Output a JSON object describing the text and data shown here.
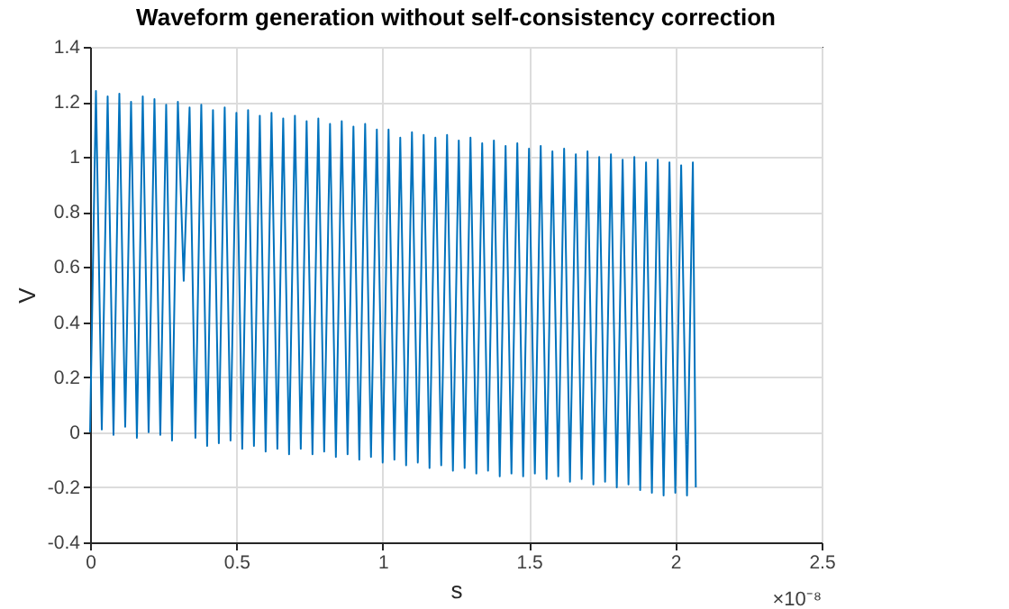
{
  "chart_data": {
    "type": "line",
    "title": "Waveform generation without self-consistency correction",
    "xlabel": "s",
    "ylabel": "V",
    "annotations": [
      "×10⁻⁸"
    ],
    "x": [
      0,
      0.02,
      0.04,
      0.06,
      0.08,
      0.1,
      0.12,
      0.14,
      0.16,
      0.18,
      0.2,
      0.22,
      0.24,
      0.26,
      0.28,
      0.3,
      0.32,
      0.34,
      0.36,
      0.38,
      0.4,
      0.42,
      0.44,
      0.46,
      0.48,
      0.5,
      0.52,
      0.54,
      0.56,
      0.58,
      0.6,
      0.62,
      0.64,
      0.66,
      0.68,
      0.7,
      0.72,
      0.74,
      0.76,
      0.78,
      0.8,
      0.82,
      0.84,
      0.86,
      0.88,
      0.9,
      0.92,
      0.94,
      0.96,
      0.98,
      1.0,
      1.02,
      1.04,
      1.06,
      1.08,
      1.1,
      1.12,
      1.14,
      1.16,
      1.18,
      1.2,
      1.22,
      1.24,
      1.26,
      1.28,
      1.3,
      1.32,
      1.34,
      1.36,
      1.38,
      1.4,
      1.42,
      1.44,
      1.46,
      1.48,
      1.5,
      1.52,
      1.54,
      1.56,
      1.58,
      1.6,
      1.62,
      1.64,
      1.66,
      1.68,
      1.7,
      1.72,
      1.74,
      1.76,
      1.78,
      1.8,
      1.82,
      1.84,
      1.86,
      1.88,
      1.9,
      1.92,
      1.94,
      1.96,
      1.98,
      2.0,
      2.02,
      2.04,
      2.06,
      2.07
    ],
    "series": [
      {
        "color": "#0072bd",
        "values": [
          0,
          1.24,
          0.01,
          1.22,
          -0.01,
          1.23,
          0.02,
          1.2,
          -0.02,
          1.22,
          0.0,
          1.21,
          -0.01,
          1.19,
          -0.03,
          1.2,
          0.55,
          1.18,
          -0.02,
          1.19,
          -0.05,
          1.17,
          -0.04,
          1.18,
          -0.03,
          1.16,
          -0.06,
          1.17,
          -0.05,
          1.15,
          -0.07,
          1.16,
          -0.06,
          1.14,
          -0.08,
          1.15,
          -0.06,
          1.13,
          -0.08,
          1.14,
          -0.07,
          1.12,
          -0.09,
          1.13,
          -0.08,
          1.11,
          -0.1,
          1.12,
          -0.09,
          1.1,
          -0.11,
          1.1,
          -0.1,
          1.07,
          -0.12,
          1.09,
          -0.11,
          1.08,
          -0.13,
          1.07,
          -0.12,
          1.08,
          -0.14,
          1.06,
          -0.13,
          1.07,
          -0.15,
          1.05,
          -0.14,
          1.06,
          -0.16,
          1.04,
          -0.15,
          1.05,
          -0.16,
          1.03,
          -0.15,
          1.04,
          -0.17,
          1.02,
          -0.16,
          1.03,
          -0.18,
          1.01,
          -0.17,
          1.02,
          -0.19,
          1.0,
          -0.18,
          1.01,
          -0.2,
          0.99,
          -0.19,
          1.0,
          -0.21,
          0.98,
          -0.22,
          0.99,
          -0.23,
          0.98,
          -0.22,
          0.97,
          -0.23,
          0.98,
          -0.2
        ]
      }
    ],
    "xlim": [
      0,
      2.5
    ],
    "xticks": [
      0,
      0.5,
      1,
      1.5,
      2,
      2.5
    ],
    "ylim": [
      -0.4,
      1.4
    ],
    "yticks": [
      -0.4,
      -0.2,
      0,
      0.2,
      0.4,
      0.6,
      0.8,
      1,
      1.2,
      1.4
    ],
    "grid": true,
    "line_style": "solid",
    "marker": "none"
  }
}
